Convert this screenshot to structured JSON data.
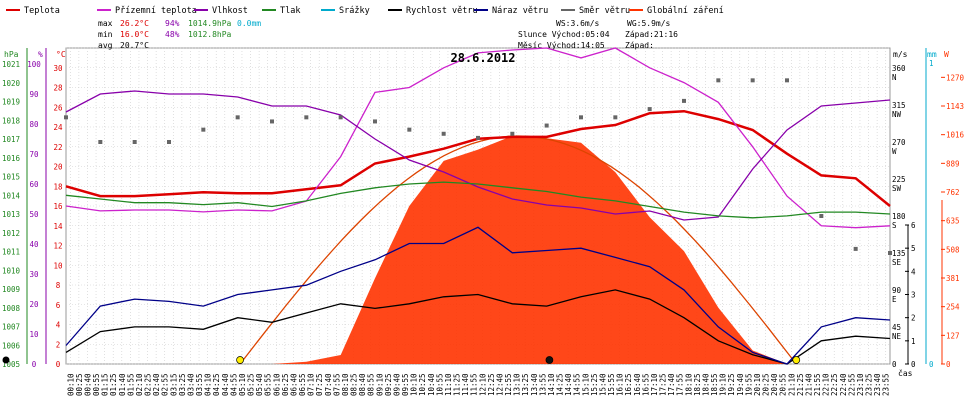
{
  "chart_data": {
    "type": "line",
    "title": "28.6.2012",
    "x_unit_label": "čas",
    "legend": [
      {
        "name": "Teplota",
        "color": "#dd0000"
      },
      {
        "name": "Přízemní teplota",
        "color": "#cc22cc"
      },
      {
        "name": "Vlhkost",
        "color": "#8800aa"
      },
      {
        "name": "Tlak",
        "color": "#228822"
      },
      {
        "name": "Srážky",
        "color": "#00aacc"
      },
      {
        "name": "Rychlost větru",
        "color": "#000000"
      },
      {
        "name": "Náraz větru",
        "color": "#000088"
      },
      {
        "name": "Směr větru",
        "color": "#666666"
      },
      {
        "name": "Globální záření",
        "color": "#ff3300"
      }
    ],
    "stats": {
      "max": {
        "label": "max",
        "temp": "26.2°C",
        "hum": "94%",
        "press": "1014.9hPa",
        "rain": "0.0mm"
      },
      "min": {
        "label": "min",
        "temp": "16.0°C",
        "hum": "48%",
        "press": "1012.8hPa"
      },
      "avg": {
        "label": "avg",
        "temp": "20.7°C"
      }
    },
    "info": {
      "ws": "WS:3.6m/s",
      "wg": "WG:5.9m/s",
      "sun_rise": "Slunce Východ:05:04",
      "sun_set": "Západ:21:16",
      "moon_rise": "Měsíc Východ:14:05",
      "moon_set": "Západ:"
    },
    "axes": {
      "hpa": {
        "label": "hPa",
        "ticks": [
          "1021",
          "1020",
          "1019",
          "1018",
          "1017",
          "1016",
          "1015",
          "1014",
          "1013",
          "1012",
          "1011",
          "1010",
          "1009",
          "1008",
          "1007",
          "1006",
          "1005"
        ]
      },
      "pct": {
        "label": "%",
        "ticks": [
          "100",
          "90",
          "80",
          "70",
          "60",
          "50",
          "40",
          "30",
          "20",
          "10",
          "0"
        ]
      },
      "temp": {
        "label": "°C",
        "ticks": [
          "30",
          "28",
          "26",
          "24",
          "22",
          "20",
          "18",
          "16",
          "14",
          "12",
          "10",
          "8",
          "6",
          "4",
          "2",
          "0"
        ],
        "range": [
          0,
          32
        ]
      },
      "wind": {
        "label": "m/s",
        "ticks": [
          "6",
          "5",
          "4",
          "3",
          "2",
          "1",
          "0"
        ],
        "range": [
          0,
          6
        ]
      },
      "rain": {
        "label": "mm",
        "ticks": [
          "1",
          "0"
        ]
      },
      "dir": {
        "ticks": [
          {
            "deg": "360",
            "dir": "N"
          },
          {
            "deg": "315",
            "dir": "NW"
          },
          {
            "deg": "270",
            "dir": "W"
          },
          {
            "deg": "225",
            "dir": "SW"
          },
          {
            "deg": "180",
            "dir": "S"
          },
          {
            "deg": "135",
            "dir": "SE"
          },
          {
            "deg": "90",
            "dir": "E"
          },
          {
            "deg": "45",
            "dir": "NE"
          },
          {
            "deg": "0",
            "dir": ""
          }
        ]
      },
      "rad": {
        "label": "W",
        "ticks": [
          "1270",
          "1143",
          "1016",
          "889",
          "762",
          "635",
          "508",
          "381",
          "254",
          "127",
          "0"
        ],
        "range": [
          0,
          1400
        ]
      },
      "time_ticks": [
        "00:10",
        "00:25",
        "00:40",
        "00:55",
        "01:15",
        "01:25",
        "01:40",
        "01:55",
        "02:10",
        "02:25",
        "02:40",
        "02:55",
        "03:15",
        "03:25",
        "03:40",
        "03:55",
        "04:10",
        "04:25",
        "04:40",
        "04:55",
        "05:10",
        "05:25",
        "05:40",
        "05:55",
        "06:10",
        "06:25",
        "06:40",
        "06:55",
        "07:10",
        "07:25",
        "07:40",
        "07:55",
        "08:10",
        "08:25",
        "08:40",
        "08:55",
        "09:10",
        "09:25",
        "09:40",
        "09:55",
        "10:10",
        "10:25",
        "10:40",
        "10:55",
        "11:10",
        "11:25",
        "11:40",
        "11:55",
        "12:10",
        "12:25",
        "12:40",
        "12:55",
        "13:10",
        "13:25",
        "13:40",
        "13:55",
        "14:10",
        "14:25",
        "14:40",
        "14:55",
        "15:10",
        "15:25",
        "15:40",
        "15:55",
        "16:10",
        "16:25",
        "16:40",
        "16:55",
        "17:10",
        "17:25",
        "17:40",
        "17:55",
        "18:10",
        "18:25",
        "18:40",
        "18:55",
        "19:10",
        "19:25",
        "19:40",
        "19:55",
        "20:10",
        "20:25",
        "20:40",
        "20:55",
        "21:10",
        "21:25",
        "21:40",
        "21:55",
        "22:10",
        "22:25",
        "22:40",
        "22:55",
        "23:10",
        "23:25",
        "23:40",
        "23:55"
      ]
    },
    "x_hours": [
      0,
      1,
      2,
      3,
      4,
      5,
      6,
      7,
      8,
      9,
      10,
      11,
      12,
      13,
      14,
      15,
      16,
      17,
      18,
      19,
      20,
      21,
      22,
      23,
      24
    ],
    "series": [
      {
        "name": "Teplota",
        "unit": "°C",
        "color": "#dd0000",
        "values": [
          18.0,
          17.0,
          17.0,
          17.2,
          17.4,
          17.3,
          17.3,
          17.7,
          18.1,
          20.3,
          21.0,
          21.8,
          22.8,
          23.0,
          23.0,
          23.8,
          24.2,
          25.4,
          25.6,
          24.8,
          23.7,
          21.3,
          19.1,
          18.8,
          16.0
        ]
      },
      {
        "name": "Přízemní teplota",
        "unit": "°C",
        "color": "#cc22cc",
        "values": [
          16.0,
          15.5,
          15.6,
          15.6,
          15.4,
          15.6,
          15.5,
          16.5,
          21.0,
          27.5,
          28.0,
          30.0,
          31.5,
          31.8,
          32.0,
          31.0,
          32.0,
          30.0,
          28.5,
          26.5,
          22.0,
          17.0,
          14.0,
          13.8,
          14.0
        ]
      },
      {
        "name": "Vlhkost",
        "unit": "%",
        "color": "#8800aa",
        "values": [
          84,
          90,
          91,
          90,
          90,
          89,
          86,
          86,
          83,
          75,
          68,
          64,
          59,
          55,
          53,
          52,
          50,
          51,
          48,
          49,
          65,
          78,
          86,
          87,
          88
        ]
      },
      {
        "name": "Tlak",
        "unit": "hPa",
        "color": "#228822",
        "values": [
          1014.0,
          1013.8,
          1013.6,
          1013.6,
          1013.5,
          1013.6,
          1013.4,
          1013.7,
          1014.1,
          1014.4,
          1014.6,
          1014.7,
          1014.6,
          1014.4,
          1014.2,
          1013.9,
          1013.7,
          1013.4,
          1013.1,
          1012.9,
          1012.8,
          1012.9,
          1013.1,
          1013.1,
          1013.0
        ]
      },
      {
        "name": "Rychlost větru",
        "unit": "m/s",
        "color": "#000000",
        "values": [
          0.5,
          1.4,
          1.6,
          1.6,
          1.5,
          2.0,
          1.8,
          2.2,
          2.6,
          2.4,
          2.6,
          2.9,
          3.0,
          2.6,
          2.5,
          2.9,
          3.2,
          2.8,
          2.0,
          1.0,
          0.4,
          0.0,
          1.0,
          1.2,
          1.1
        ]
      },
      {
        "name": "Náraz větru",
        "unit": "m/s",
        "color": "#000088",
        "values": [
          0.8,
          2.5,
          2.8,
          2.7,
          2.5,
          3.0,
          3.2,
          3.4,
          4.0,
          4.5,
          5.2,
          5.2,
          5.9,
          4.8,
          4.9,
          5.0,
          4.6,
          4.2,
          3.2,
          1.6,
          0.5,
          0.0,
          1.6,
          2.0,
          1.9
        ]
      },
      {
        "name": "Směr větru",
        "unit": "°",
        "color": "#666666",
        "values": [
          300,
          270,
          270,
          270,
          285,
          300,
          295,
          300,
          300,
          295,
          285,
          280,
          275,
          280,
          290,
          300,
          300,
          310,
          320,
          345,
          345,
          345,
          180,
          140,
          135
        ]
      },
      {
        "name": "Globální záření",
        "unit": "W/m²",
        "color": "#ff3300",
        "values": [
          0,
          0,
          0,
          0,
          0,
          0,
          0,
          10,
          40,
          380,
          700,
          900,
          950,
          1010,
          1000,
          980,
          850,
          650,
          500,
          250,
          60,
          0,
          0,
          0,
          0
        ]
      }
    ],
    "radiation_theoretical": {
      "name": "Globální záření (teor.)",
      "color": "#dd4400",
      "sunrise_h": 5.07,
      "sunset_h": 21.27,
      "peak": 1010
    },
    "markers": [
      {
        "name": "sunrise",
        "hour": 5.07,
        "color": "#ffee00"
      },
      {
        "name": "sunset",
        "hour": 21.27,
        "color": "#ffee00"
      },
      {
        "name": "moonrise",
        "hour": 14.08,
        "color": "#111111"
      }
    ]
  }
}
